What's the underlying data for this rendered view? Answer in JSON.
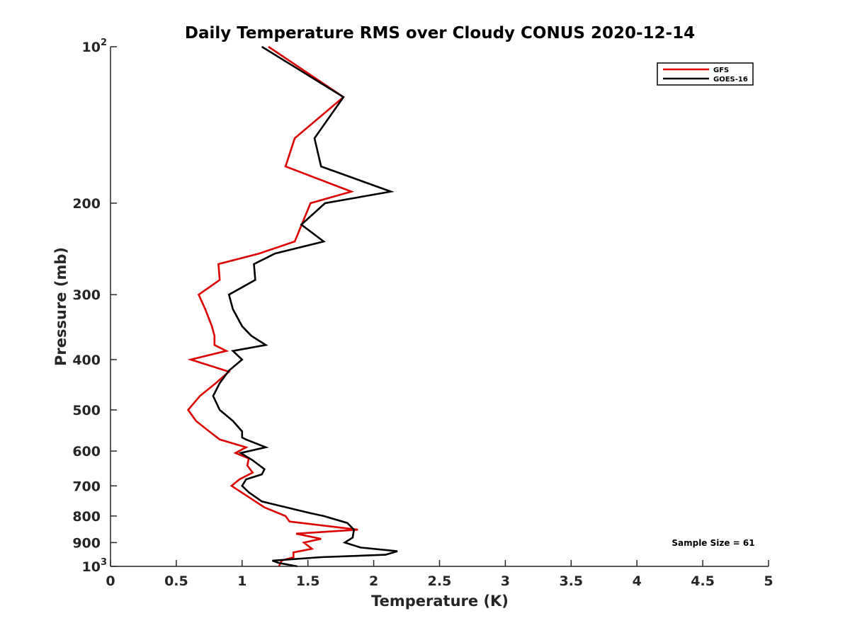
{
  "chart_data": {
    "type": "line",
    "title": "Daily Temperature RMS over Cloudy CONUS 2020-12-14",
    "xlabel": "Temperature (K)",
    "ylabel": "Pressure (mb)",
    "xlim": [
      0,
      5
    ],
    "ylim": [
      100,
      1000
    ],
    "y_scale": "log",
    "y_reversed": true,
    "grid": false,
    "legend_position": "top-right",
    "x_ticks": [
      "0",
      "0.5",
      "1",
      "1.5",
      "2",
      "2.5",
      "3",
      "3.5",
      "4",
      "4.5",
      "5"
    ],
    "y_ticks": [
      {
        "value": 100,
        "base": "10",
        "exp": "2"
      },
      {
        "value": 200,
        "label": "200"
      },
      {
        "value": 300,
        "label": "300"
      },
      {
        "value": 400,
        "label": "400"
      },
      {
        "value": 500,
        "label": "500"
      },
      {
        "value": 600,
        "label": "600"
      },
      {
        "value": 700,
        "label": "700"
      },
      {
        "value": 800,
        "label": "800"
      },
      {
        "value": 900,
        "label": "900"
      },
      {
        "value": 1000,
        "base": "10",
        "exp": "3"
      }
    ],
    "annotation": "Sample Size = 61",
    "series": [
      {
        "name": "GFS",
        "color": "#dd0000",
        "points": [
          [
            1.2,
            100
          ],
          [
            1.77,
            125
          ],
          [
            1.4,
            150
          ],
          [
            1.33,
            170
          ],
          [
            1.83,
            190
          ],
          [
            1.52,
            200
          ],
          [
            1.4,
            237
          ],
          [
            1.13,
            250
          ],
          [
            0.82,
            262
          ],
          [
            0.83,
            281
          ],
          [
            0.67,
            300
          ],
          [
            0.72,
            320
          ],
          [
            0.77,
            345
          ],
          [
            0.79,
            360
          ],
          [
            0.79,
            375
          ],
          [
            0.88,
            385
          ],
          [
            0.61,
            400
          ],
          [
            0.9,
            422
          ],
          [
            0.8,
            444
          ],
          [
            0.68,
            470
          ],
          [
            0.59,
            500
          ],
          [
            0.65,
            525
          ],
          [
            0.75,
            550
          ],
          [
            0.83,
            570
          ],
          [
            1.03,
            590
          ],
          [
            0.95,
            605
          ],
          [
            1.05,
            620
          ],
          [
            1.04,
            640
          ],
          [
            1.08,
            660
          ],
          [
            0.98,
            680
          ],
          [
            0.92,
            700
          ],
          [
            1.03,
            730
          ],
          [
            1.17,
            770
          ],
          [
            1.33,
            800
          ],
          [
            1.36,
            820
          ],
          [
            1.88,
            850
          ],
          [
            1.41,
            865
          ],
          [
            1.6,
            885
          ],
          [
            1.47,
            900
          ],
          [
            1.53,
            925
          ],
          [
            1.39,
            940
          ],
          [
            1.39,
            960
          ],
          [
            1.3,
            975
          ],
          [
            1.28,
            1000
          ]
        ]
      },
      {
        "name": "GOES-16",
        "color": "#000000",
        "points": [
          [
            1.15,
            100
          ],
          [
            1.77,
            125
          ],
          [
            1.55,
            150
          ],
          [
            1.6,
            170
          ],
          [
            2.13,
            190
          ],
          [
            1.63,
            200
          ],
          [
            1.45,
            220
          ],
          [
            1.62,
            237
          ],
          [
            1.25,
            250
          ],
          [
            1.09,
            262
          ],
          [
            1.1,
            281
          ],
          [
            0.9,
            300
          ],
          [
            0.93,
            320
          ],
          [
            1.0,
            345
          ],
          [
            1.07,
            360
          ],
          [
            1.18,
            375
          ],
          [
            0.93,
            385
          ],
          [
            1.0,
            400
          ],
          [
            0.9,
            420
          ],
          [
            0.83,
            444
          ],
          [
            0.78,
            470
          ],
          [
            0.83,
            500
          ],
          [
            0.93,
            525
          ],
          [
            1.0,
            550
          ],
          [
            1.0,
            565
          ],
          [
            1.03,
            570
          ],
          [
            1.18,
            590
          ],
          [
            0.99,
            605
          ],
          [
            1.08,
            625
          ],
          [
            1.17,
            650
          ],
          [
            1.15,
            665
          ],
          [
            1.03,
            680
          ],
          [
            1.0,
            700
          ],
          [
            1.05,
            720
          ],
          [
            1.15,
            750
          ],
          [
            1.52,
            790
          ],
          [
            1.62,
            800
          ],
          [
            1.8,
            825
          ],
          [
            1.85,
            850
          ],
          [
            1.84,
            880
          ],
          [
            1.78,
            900
          ],
          [
            1.9,
            920
          ],
          [
            2.18,
            935
          ],
          [
            2.09,
            950
          ],
          [
            1.6,
            960
          ],
          [
            1.23,
            975
          ],
          [
            1.28,
            985
          ],
          [
            1.42,
            1000
          ]
        ]
      }
    ]
  }
}
